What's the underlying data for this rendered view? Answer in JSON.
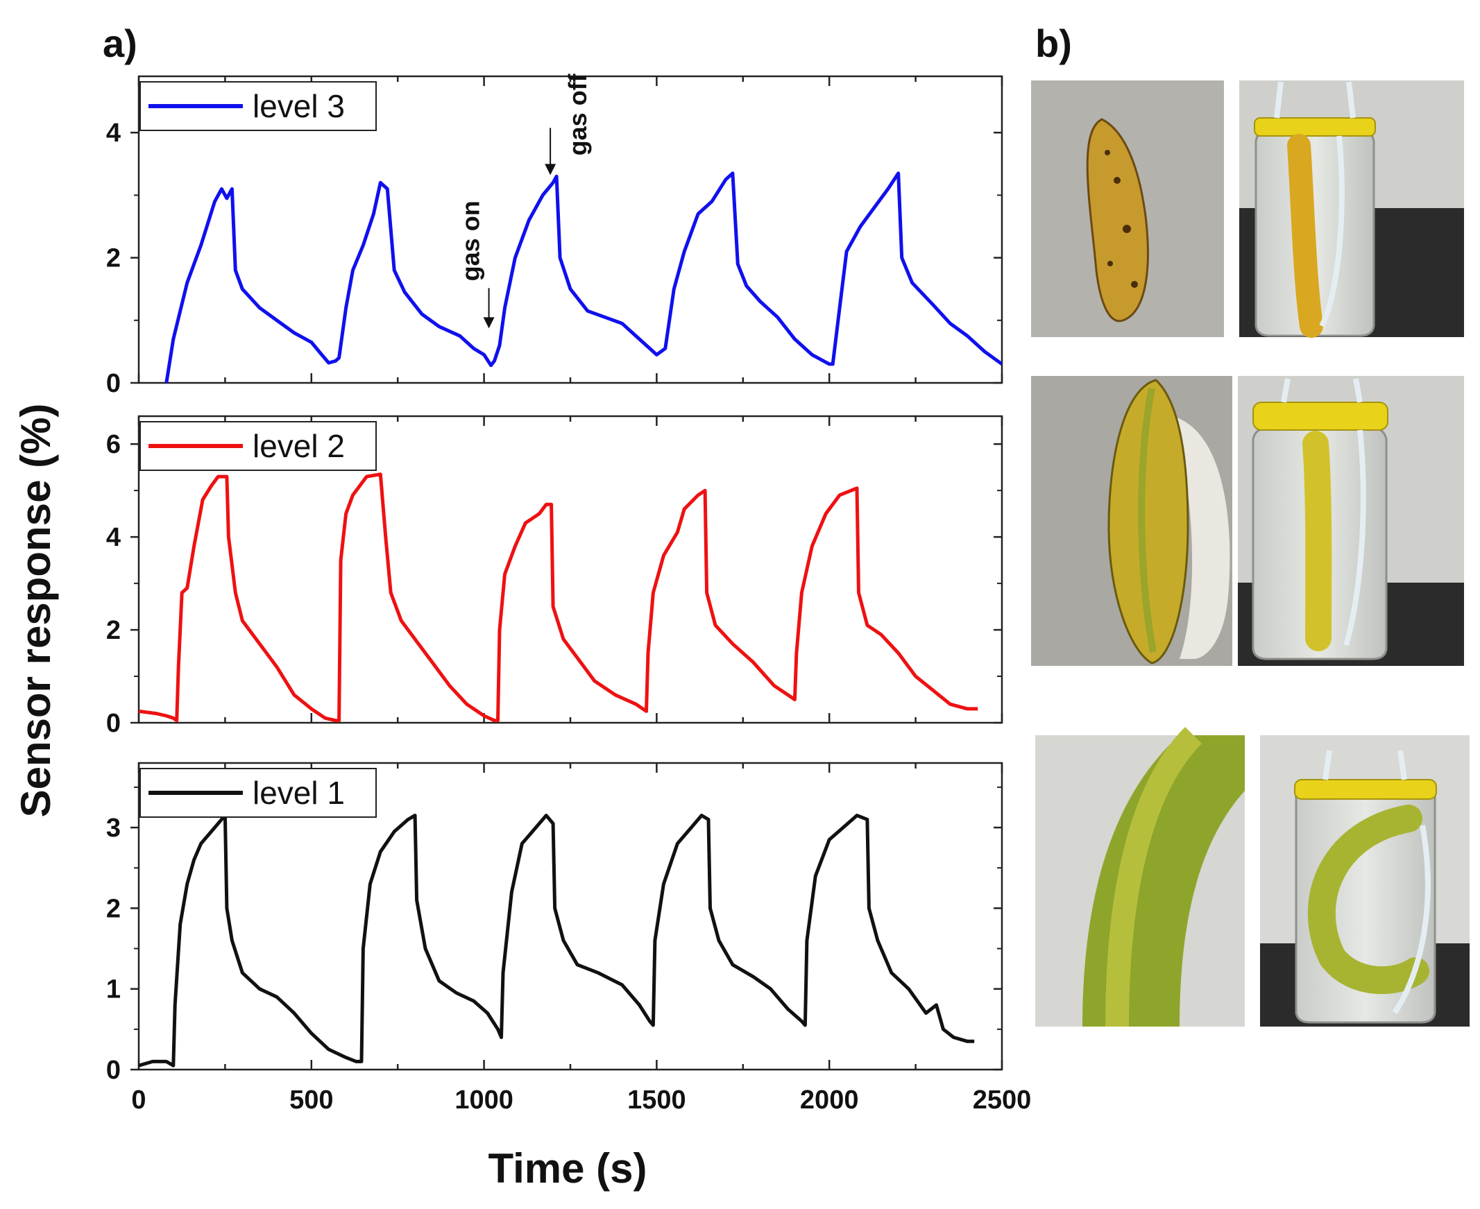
{
  "panels": {
    "a_label": "a)",
    "b_label": "b)"
  },
  "chart_data": {
    "type": "line",
    "xlabel": "Time (s)",
    "ylabel": "Sensor response (%)",
    "xlim": [
      0,
      2500
    ],
    "xticks": [
      "0",
      "500",
      "1000",
      "1500",
      "2000",
      "2500"
    ],
    "subplots": [
      {
        "name": "level 3",
        "color": "#1010ee",
        "ylim": [
          0,
          4.9
        ],
        "yticks": [
          "0",
          "2",
          "4"
        ],
        "annotations": [
          {
            "text": "gas on",
            "x": 1010,
            "y": 0.85
          },
          {
            "text": "gas off",
            "x": 1200,
            "y": 3.3
          }
        ],
        "series": [
          [
            80,
            0
          ],
          [
            100,
            0.7
          ],
          [
            140,
            1.6
          ],
          [
            180,
            2.2
          ],
          [
            220,
            2.9
          ],
          [
            240,
            3.1
          ],
          [
            255,
            2.95
          ],
          [
            270,
            3.1
          ],
          [
            280,
            1.8
          ],
          [
            300,
            1.5
          ],
          [
            350,
            1.2
          ],
          [
            400,
            1.0
          ],
          [
            450,
            0.8
          ],
          [
            500,
            0.65
          ],
          [
            530,
            0.45
          ],
          [
            550,
            0.32
          ],
          [
            570,
            0.35
          ],
          [
            580,
            0.4
          ],
          [
            600,
            1.2
          ],
          [
            620,
            1.8
          ],
          [
            650,
            2.2
          ],
          [
            680,
            2.7
          ],
          [
            700,
            3.2
          ],
          [
            720,
            3.1
          ],
          [
            740,
            1.8
          ],
          [
            770,
            1.45
          ],
          [
            820,
            1.1
          ],
          [
            870,
            0.9
          ],
          [
            930,
            0.75
          ],
          [
            970,
            0.55
          ],
          [
            1000,
            0.45
          ],
          [
            1020,
            0.28
          ],
          [
            1030,
            0.35
          ],
          [
            1045,
            0.6
          ],
          [
            1060,
            1.2
          ],
          [
            1090,
            2.0
          ],
          [
            1130,
            2.6
          ],
          [
            1170,
            3.0
          ],
          [
            1200,
            3.2
          ],
          [
            1210,
            3.3
          ],
          [
            1220,
            2.0
          ],
          [
            1250,
            1.5
          ],
          [
            1300,
            1.15
          ],
          [
            1350,
            1.05
          ],
          [
            1400,
            0.95
          ],
          [
            1450,
            0.7
          ],
          [
            1490,
            0.5
          ],
          [
            1500,
            0.45
          ],
          [
            1525,
            0.55
          ],
          [
            1550,
            1.5
          ],
          [
            1580,
            2.1
          ],
          [
            1620,
            2.7
          ],
          [
            1660,
            2.9
          ],
          [
            1700,
            3.25
          ],
          [
            1720,
            3.35
          ],
          [
            1735,
            1.9
          ],
          [
            1760,
            1.55
          ],
          [
            1800,
            1.3
          ],
          [
            1850,
            1.05
          ],
          [
            1900,
            0.7
          ],
          [
            1950,
            0.45
          ],
          [
            2000,
            0.3
          ],
          [
            2010,
            0.3
          ],
          [
            2030,
            1.2
          ],
          [
            2050,
            2.1
          ],
          [
            2090,
            2.5
          ],
          [
            2130,
            2.8
          ],
          [
            2170,
            3.1
          ],
          [
            2200,
            3.35
          ],
          [
            2210,
            2.0
          ],
          [
            2240,
            1.6
          ],
          [
            2300,
            1.25
          ],
          [
            2350,
            0.95
          ],
          [
            2400,
            0.75
          ],
          [
            2450,
            0.5
          ],
          [
            2500,
            0.3
          ]
        ]
      },
      {
        "name": "level 2",
        "color": "#ee1111",
        "ylim": [
          0,
          6.6
        ],
        "yticks": [
          "0",
          "2",
          "4",
          "6"
        ],
        "series": [
          [
            0,
            0.25
          ],
          [
            50,
            0.2
          ],
          [
            80,
            0.15
          ],
          [
            100,
            0.1
          ],
          [
            110,
            0.05
          ],
          [
            115,
            1.2
          ],
          [
            125,
            2.8
          ],
          [
            140,
            2.9
          ],
          [
            160,
            3.8
          ],
          [
            185,
            4.8
          ],
          [
            210,
            5.1
          ],
          [
            230,
            5.3
          ],
          [
            255,
            5.3
          ],
          [
            260,
            4.0
          ],
          [
            280,
            2.8
          ],
          [
            300,
            2.2
          ],
          [
            350,
            1.7
          ],
          [
            400,
            1.2
          ],
          [
            450,
            0.6
          ],
          [
            500,
            0.3
          ],
          [
            540,
            0.1
          ],
          [
            570,
            0.05
          ],
          [
            580,
            0.05
          ],
          [
            585,
            3.5
          ],
          [
            600,
            4.5
          ],
          [
            620,
            4.9
          ],
          [
            660,
            5.3
          ],
          [
            700,
            5.35
          ],
          [
            715,
            4.0
          ],
          [
            730,
            2.8
          ],
          [
            760,
            2.2
          ],
          [
            800,
            1.8
          ],
          [
            850,
            1.3
          ],
          [
            900,
            0.8
          ],
          [
            950,
            0.4
          ],
          [
            1000,
            0.15
          ],
          [
            1030,
            0.05
          ],
          [
            1040,
            0.05
          ],
          [
            1045,
            2.0
          ],
          [
            1060,
            3.2
          ],
          [
            1090,
            3.8
          ],
          [
            1120,
            4.3
          ],
          [
            1160,
            4.5
          ],
          [
            1180,
            4.7
          ],
          [
            1195,
            4.7
          ],
          [
            1200,
            2.5
          ],
          [
            1230,
            1.8
          ],
          [
            1280,
            1.3
          ],
          [
            1320,
            0.9
          ],
          [
            1380,
            0.6
          ],
          [
            1440,
            0.4
          ],
          [
            1460,
            0.3
          ],
          [
            1470,
            0.25
          ],
          [
            1475,
            1.5
          ],
          [
            1490,
            2.8
          ],
          [
            1520,
            3.6
          ],
          [
            1560,
            4.1
          ],
          [
            1580,
            4.6
          ],
          [
            1620,
            4.9
          ],
          [
            1640,
            5.0
          ],
          [
            1645,
            2.8
          ],
          [
            1670,
            2.1
          ],
          [
            1720,
            1.7
          ],
          [
            1780,
            1.3
          ],
          [
            1840,
            0.8
          ],
          [
            1880,
            0.6
          ],
          [
            1900,
            0.5
          ],
          [
            1905,
            1.5
          ],
          [
            1920,
            2.8
          ],
          [
            1950,
            3.8
          ],
          [
            1990,
            4.5
          ],
          [
            2030,
            4.9
          ],
          [
            2080,
            5.05
          ],
          [
            2085,
            2.8
          ],
          [
            2110,
            2.1
          ],
          [
            2150,
            1.9
          ],
          [
            2200,
            1.5
          ],
          [
            2250,
            1.0
          ],
          [
            2300,
            0.7
          ],
          [
            2350,
            0.4
          ],
          [
            2400,
            0.3
          ],
          [
            2430,
            0.3
          ]
        ]
      },
      {
        "name": "level 1",
        "color": "#111111",
        "ylim": [
          0,
          3.8
        ],
        "yticks": [
          "0",
          "1",
          "2",
          "3"
        ],
        "series": [
          [
            0,
            0.05
          ],
          [
            40,
            0.1
          ],
          [
            80,
            0.1
          ],
          [
            100,
            0.05
          ],
          [
            105,
            0.8
          ],
          [
            120,
            1.8
          ],
          [
            140,
            2.3
          ],
          [
            160,
            2.6
          ],
          [
            180,
            2.8
          ],
          [
            210,
            2.95
          ],
          [
            240,
            3.1
          ],
          [
            250,
            3.15
          ],
          [
            255,
            2.0
          ],
          [
            270,
            1.6
          ],
          [
            300,
            1.2
          ],
          [
            350,
            1.0
          ],
          [
            400,
            0.9
          ],
          [
            450,
            0.7
          ],
          [
            500,
            0.45
          ],
          [
            550,
            0.25
          ],
          [
            600,
            0.15
          ],
          [
            630,
            0.1
          ],
          [
            645,
            0.1
          ],
          [
            650,
            1.5
          ],
          [
            670,
            2.3
          ],
          [
            700,
            2.7
          ],
          [
            740,
            2.95
          ],
          [
            780,
            3.1
          ],
          [
            800,
            3.15
          ],
          [
            805,
            2.1
          ],
          [
            830,
            1.5
          ],
          [
            870,
            1.1
          ],
          [
            920,
            0.95
          ],
          [
            970,
            0.85
          ],
          [
            1010,
            0.7
          ],
          [
            1040,
            0.5
          ],
          [
            1050,
            0.4
          ],
          [
            1055,
            1.2
          ],
          [
            1080,
            2.2
          ],
          [
            1110,
            2.8
          ],
          [
            1150,
            3.0
          ],
          [
            1180,
            3.15
          ],
          [
            1200,
            3.05
          ],
          [
            1205,
            2.0
          ],
          [
            1230,
            1.6
          ],
          [
            1270,
            1.3
          ],
          [
            1330,
            1.2
          ],
          [
            1400,
            1.05
          ],
          [
            1450,
            0.8
          ],
          [
            1480,
            0.6
          ],
          [
            1490,
            0.55
          ],
          [
            1495,
            1.6
          ],
          [
            1520,
            2.3
          ],
          [
            1560,
            2.8
          ],
          [
            1600,
            3.0
          ],
          [
            1630,
            3.15
          ],
          [
            1650,
            3.1
          ],
          [
            1655,
            2.0
          ],
          [
            1680,
            1.6
          ],
          [
            1720,
            1.3
          ],
          [
            1780,
            1.15
          ],
          [
            1830,
            1.0
          ],
          [
            1880,
            0.75
          ],
          [
            1920,
            0.6
          ],
          [
            1930,
            0.55
          ],
          [
            1935,
            1.6
          ],
          [
            1960,
            2.4
          ],
          [
            2000,
            2.85
          ],
          [
            2040,
            3.0
          ],
          [
            2080,
            3.15
          ],
          [
            2110,
            3.1
          ],
          [
            2115,
            2.0
          ],
          [
            2140,
            1.6
          ],
          [
            2180,
            1.2
          ],
          [
            2230,
            1.0
          ],
          [
            2280,
            0.7
          ],
          [
            2310,
            0.8
          ],
          [
            2330,
            0.5
          ],
          [
            2360,
            0.4
          ],
          [
            2400,
            0.35
          ],
          [
            2420,
            0.35
          ]
        ]
      }
    ]
  },
  "photos": [
    {
      "name": "overripe-banana"
    },
    {
      "name": "overripe-banana-in-jar"
    },
    {
      "name": "ripe-banana"
    },
    {
      "name": "ripe-banana-in-jar"
    },
    {
      "name": "unripe-banana"
    },
    {
      "name": "unripe-banana-in-jar"
    }
  ]
}
